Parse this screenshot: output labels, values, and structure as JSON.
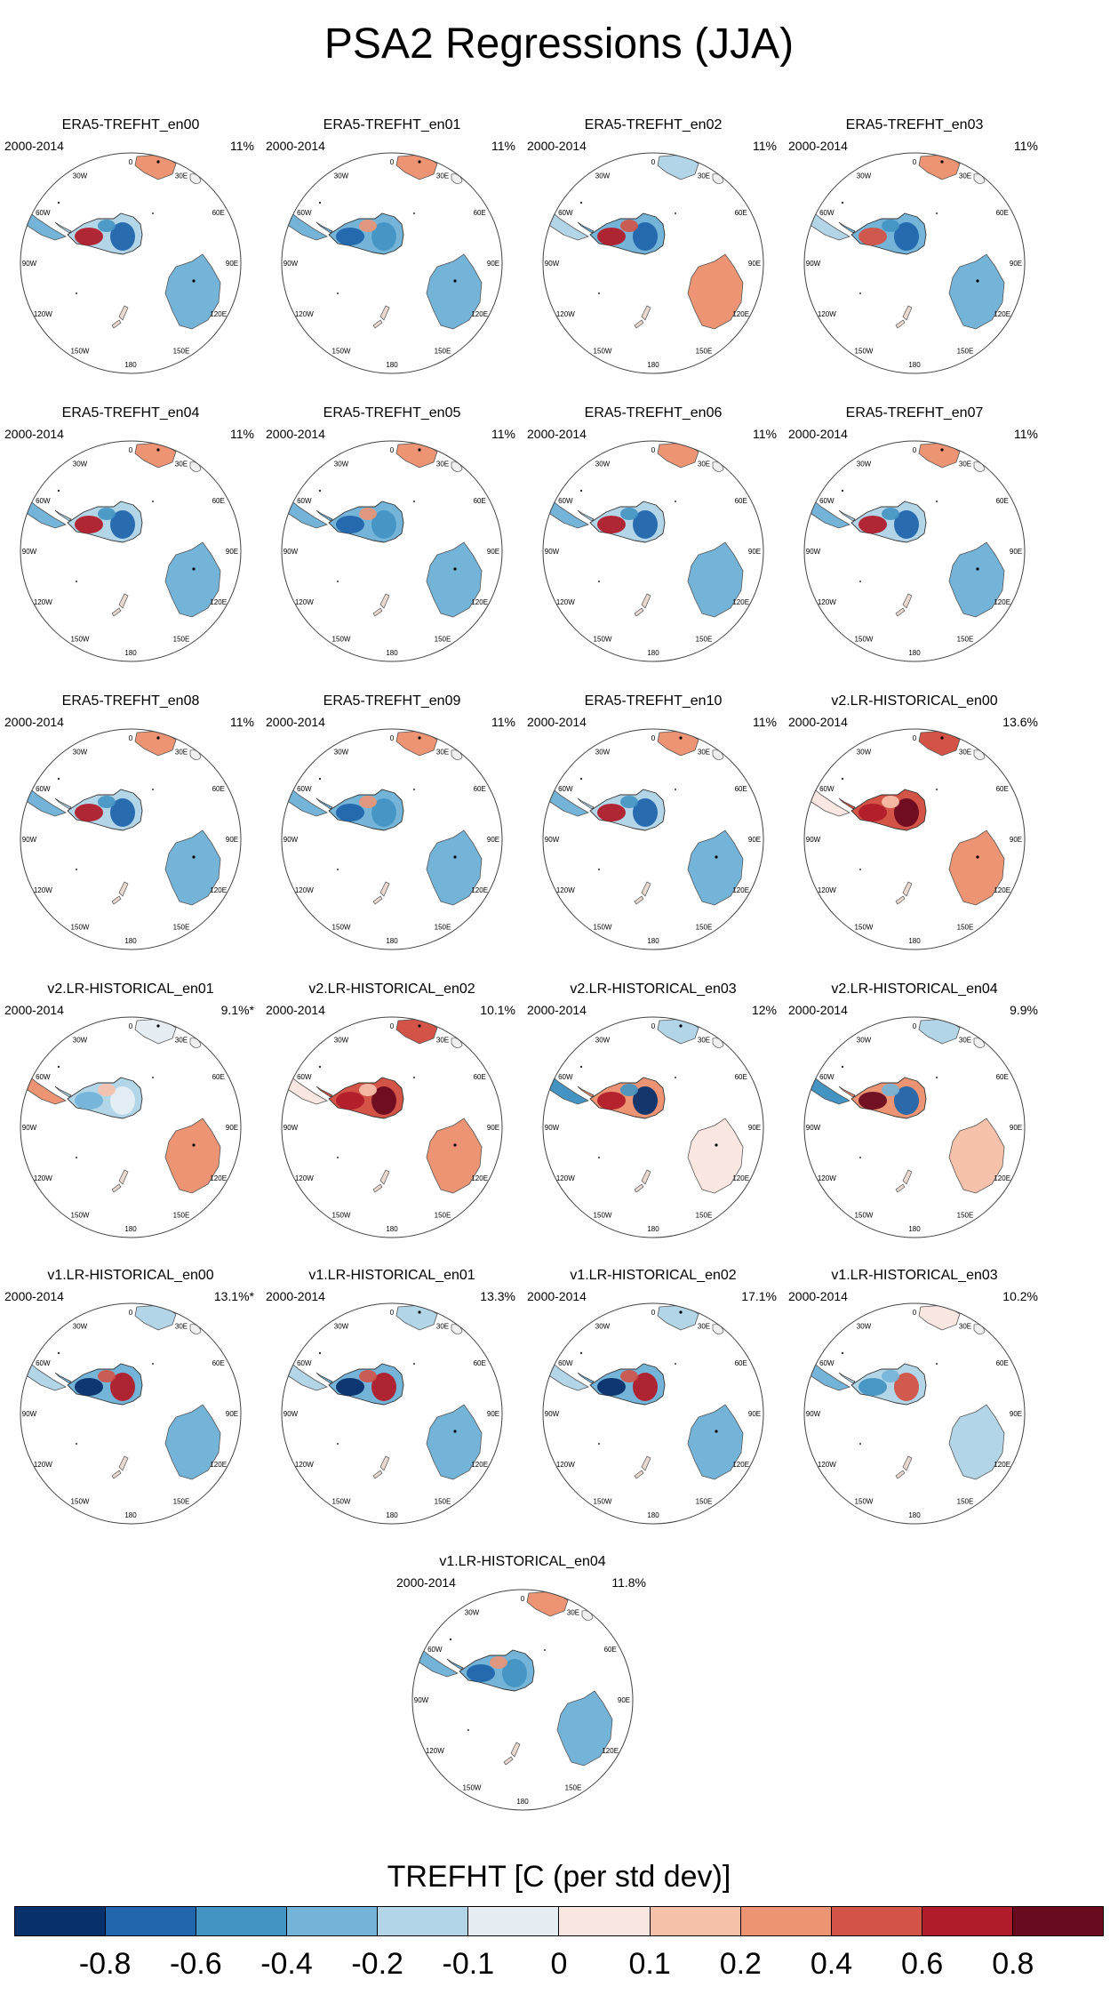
{
  "title": "PSA2 Regressions (JJA)",
  "period": "2000-2014",
  "panels": [
    {
      "title": "ERA5-TREFHT_en00",
      "pct": "11%",
      "pattern": "dipole_red_blue",
      "stipple": true
    },
    {
      "title": "ERA5-TREFHT_en01",
      "pct": "11%",
      "pattern": "mostly_blue",
      "stipple": true
    },
    {
      "title": "ERA5-TREFHT_en02",
      "pct": "11%",
      "pattern": "red_east",
      "stipple": false
    },
    {
      "title": "ERA5-TREFHT_en03",
      "pct": "11%",
      "pattern": "dipole_blue",
      "stipple": true
    },
    {
      "title": "ERA5-TREFHT_en04",
      "pct": "11%",
      "pattern": "dipole_red_blue",
      "stipple": true
    },
    {
      "title": "ERA5-TREFHT_en05",
      "pct": "11%",
      "pattern": "mostly_blue",
      "stipple": true
    },
    {
      "title": "ERA5-TREFHT_en06",
      "pct": "11%",
      "pattern": "dipole_red_blue",
      "stipple": false
    },
    {
      "title": "ERA5-TREFHT_en07",
      "pct": "11%",
      "pattern": "dipole_red_blue",
      "stipple": true
    },
    {
      "title": "ERA5-TREFHT_en08",
      "pct": "11%",
      "pattern": "dipole_red_blue",
      "stipple": true
    },
    {
      "title": "ERA5-TREFHT_en09",
      "pct": "11%",
      "pattern": "mostly_blue",
      "stipple": true
    },
    {
      "title": "ERA5-TREFHT_en10",
      "pct": "11%",
      "pattern": "dipole_red_blue",
      "stipple": true
    },
    {
      "title": "v2.LR-HISTORICAL_en00",
      "pct": "13.6%",
      "pattern": "mostly_red",
      "stipple": true
    },
    {
      "title": "v2.LR-HISTORICAL_en01",
      "pct": "9.1%*",
      "pattern": "weak_blue",
      "stipple": true
    },
    {
      "title": "v2.LR-HISTORICAL_en02",
      "pct": "10.1%",
      "pattern": "mostly_red",
      "stipple": true
    },
    {
      "title": "v2.LR-HISTORICAL_en03",
      "pct": "12%",
      "pattern": "red_blue_west",
      "stipple": true
    },
    {
      "title": "v2.LR-HISTORICAL_en04",
      "pct": "9.9%",
      "pattern": "red_center",
      "stipple": false
    },
    {
      "title": "v1.LR-HISTORICAL_en00",
      "pct": "13.1%*",
      "pattern": "blue_west_red_east",
      "stipple": false
    },
    {
      "title": "v1.LR-HISTORICAL_en01",
      "pct": "13.3%",
      "pattern": "blue_west_red_east",
      "stipple": true
    },
    {
      "title": "v1.LR-HISTORICAL_en02",
      "pct": "17.1%",
      "pattern": "blue_west_red_east",
      "stipple": true
    },
    {
      "title": "v1.LR-HISTORICAL_en03",
      "pct": "10.2%",
      "pattern": "weak_mixed",
      "stipple": false
    },
    {
      "title": "v1.LR-HISTORICAL_en04",
      "pct": "11.8%",
      "pattern": "mostly_blue",
      "stipple": false
    }
  ],
  "map_labels": {
    "lon0": "0",
    "lon30e": "30E",
    "lon60e": "60E",
    "lon90e": "90E",
    "lon120e": "120E",
    "lon150e": "150E",
    "lon180": "180",
    "lon150w": "150W",
    "lon120w": "120W",
    "lon90w": "90W",
    "lon60w": "60W",
    "lon30w": "30W"
  },
  "colorbar": {
    "title": "TREFHT [C (per std dev)]",
    "colors": [
      "#08306b",
      "#2166ac",
      "#4393c3",
      "#74b4d9",
      "#b3d5e8",
      "#e6eef4",
      "#fbe7e1",
      "#f7c2ab",
      "#ec9474",
      "#d35346",
      "#b11c2a",
      "#6a0a1f"
    ],
    "ticks": [
      "-0.8",
      "-0.6",
      "-0.4",
      "-0.2",
      "-0.1",
      "0",
      "0.1",
      "0.2",
      "0.4",
      "0.6",
      "0.8"
    ]
  }
}
